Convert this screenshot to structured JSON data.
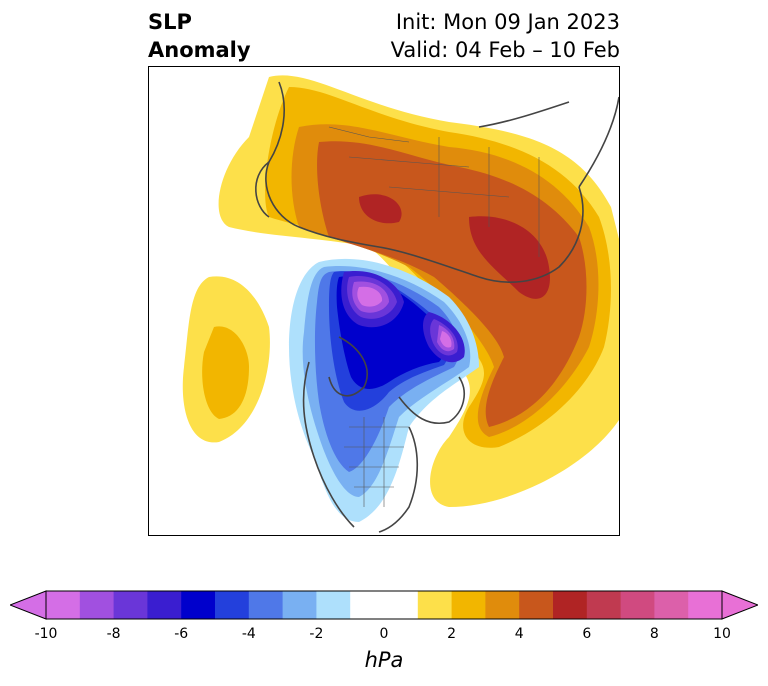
{
  "header": {
    "title_line1": "SLP",
    "title_line2": "Anomaly",
    "init_text": "Init: Mon 09 Jan 2023",
    "valid_text": "Valid: 04 Feb – 10 Feb"
  },
  "colorbar": {
    "units": "hPa",
    "ticks": [
      "-10",
      "-8",
      "-6",
      "-4",
      "-2",
      "0",
      "2",
      "4",
      "6",
      "8",
      "10"
    ],
    "colors": [
      "#d46ee6",
      "#a150e0",
      "#6a36d8",
      "#3a1ed0",
      "#0000cc",
      "#2340dc",
      "#4f78e8",
      "#79b0f2",
      "#aee0fc",
      "#ffffff",
      "#ffffff",
      "#fde04a",
      "#f2b600",
      "#e08c0c",
      "#c8571c",
      "#b02424",
      "#c03a50",
      "#d04a80",
      "#dc60aa",
      "#e870d6"
    ]
  },
  "map": {
    "colors": {
      "neg_light": "#aee0fc",
      "neg_2": "#79b0f2",
      "neg_3": "#4f78e8",
      "neg_4": "#2340dc",
      "neg_5": "#0000cc",
      "neg_6": "#3a1ed0",
      "neg_7": "#6a36d8",
      "neg_8": "#a150e0",
      "neg_9": "#d46ee6",
      "pos_1": "#fde04a",
      "pos_2": "#f2b600",
      "pos_3": "#e08c0c",
      "pos_4": "#c8571c",
      "pos_5": "#b02424"
    }
  }
}
